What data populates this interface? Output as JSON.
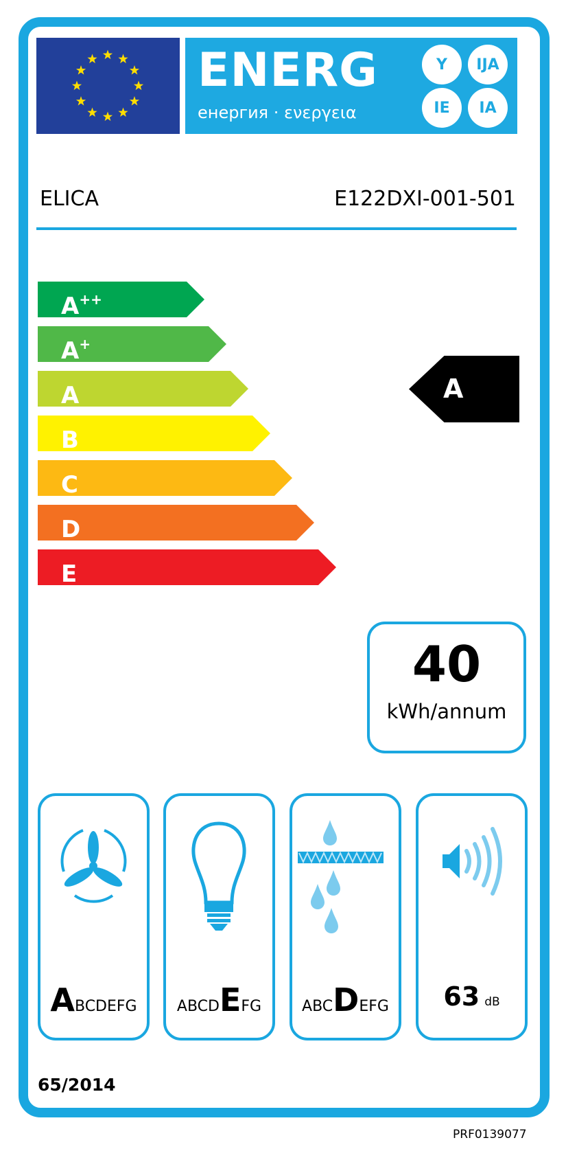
{
  "header": {
    "title": "ENERG",
    "subtitle": "енергия · ενεργεια",
    "suffixes": [
      "Y",
      "IJA",
      "IE",
      "IA"
    ]
  },
  "supplier": "ELICA",
  "model": "E122DXI-001-501",
  "scale": [
    {
      "label": "A",
      "sup": "++",
      "color": "#00a651"
    },
    {
      "label": "A",
      "sup": "+",
      "color": "#50b848"
    },
    {
      "label": "A",
      "sup": "",
      "color": "#bed630"
    },
    {
      "label": "B",
      "sup": "",
      "color": "#fff200"
    },
    {
      "label": "C",
      "sup": "",
      "color": "#fdb913"
    },
    {
      "label": "D",
      "sup": "",
      "color": "#f37021"
    },
    {
      "label": "E",
      "sup": "",
      "color": "#ed1c24"
    }
  ],
  "energy_class": "A",
  "consumption": {
    "value": "40",
    "unit": "kWh/annum"
  },
  "pictograms": [
    {
      "icon": "fan-icon",
      "pre": "",
      "bold": "A",
      "post": "BCDEFG"
    },
    {
      "icon": "light-bulb-icon",
      "pre": "ABCD",
      "bold": "E",
      "post": "FG"
    },
    {
      "icon": "grease-filter-icon",
      "pre": "ABC",
      "bold": "D",
      "post": "EFG"
    }
  ],
  "noise": {
    "icon": "speaker-icon",
    "value": "63",
    "unit": "dB"
  },
  "regulation": "65/2014",
  "code": "PRF0139077",
  "colors": {
    "frame": "#1aa7e0",
    "flag": "#22409a",
    "stars": "#ffdd00"
  }
}
